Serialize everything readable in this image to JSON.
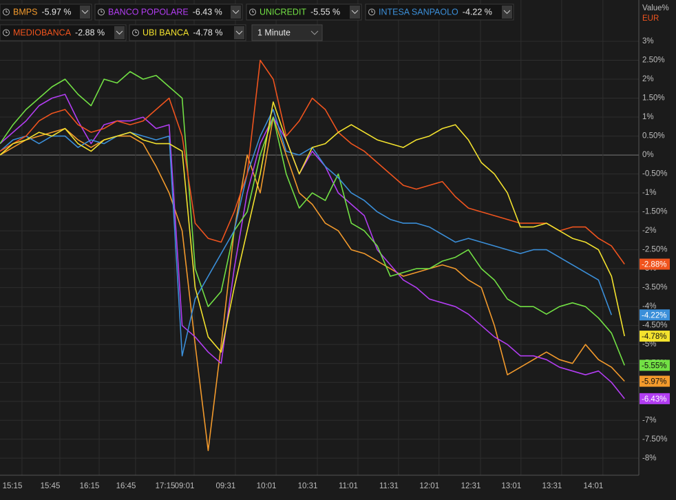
{
  "chart_data": {
    "type": "line",
    "axis_title": "Value%",
    "currency": "EUR",
    "interval": "1 Minute",
    "xlim": [
      0,
      49.1
    ],
    "xticks": [
      {
        "value": 0.95,
        "label": "15:15"
      },
      {
        "value": 3.86,
        "label": "15:45"
      },
      {
        "value": 6.88,
        "label": "16:15"
      },
      {
        "value": 9.68,
        "label": "16:45"
      },
      {
        "value": 12.7,
        "label": "17:15"
      },
      {
        "value": 14.18,
        "label": "09:01"
      },
      {
        "value": 17.35,
        "label": "09:31"
      },
      {
        "value": 20.48,
        "label": "10:01"
      },
      {
        "value": 23.65,
        "label": "10:31"
      },
      {
        "value": 26.77,
        "label": "11:01"
      },
      {
        "value": 29.89,
        "label": "11:31"
      },
      {
        "value": 33.0,
        "label": "12:01"
      },
      {
        "value": 36.19,
        "label": "12:31"
      },
      {
        "value": 39.3,
        "label": "13:01"
      },
      {
        "value": 42.43,
        "label": "13:31"
      },
      {
        "value": 45.6,
        "label": "14:01"
      }
    ],
    "ylim": [
      -8.45,
      3.6
    ],
    "yticks": [
      {
        "value": 3,
        "label": "3%"
      },
      {
        "value": 2.5,
        "label": "2.50%"
      },
      {
        "value": 2,
        "label": "2%"
      },
      {
        "value": 1.5,
        "label": "1.50%"
      },
      {
        "value": 1,
        "label": "1%"
      },
      {
        "value": 0.5,
        "label": "0.50%"
      },
      {
        "value": 0,
        "label": "0%"
      },
      {
        "value": -0.5,
        "label": "-0.50%"
      },
      {
        "value": -1,
        "label": "-1%"
      },
      {
        "value": -1.5,
        "label": "-1.50%"
      },
      {
        "value": -2,
        "label": "-2%"
      },
      {
        "value": -2.5,
        "label": "-2.50%"
      },
      {
        "value": -3,
        "label": "-3%"
      },
      {
        "value": -3.5,
        "label": "-3.50%"
      },
      {
        "value": -4,
        "label": "-4%"
      },
      {
        "value": -4.5,
        "label": "-4.50%"
      },
      {
        "value": -5,
        "label": "-5%"
      },
      {
        "value": -5.5,
        "label": "-5.50%"
      },
      {
        "value": -6,
        "label": "-6%"
      },
      {
        "value": -6.5,
        "label": "-6.50%"
      },
      {
        "value": -7,
        "label": "-7%"
      },
      {
        "value": -7.5,
        "label": "-7.50%"
      },
      {
        "value": -8,
        "label": "-8%"
      }
    ],
    "grid": true,
    "series": [
      {
        "name": "BMPS",
        "color": "#f39a2c",
        "change_label": "-5.97 %",
        "last_label": "-5.97%",
        "values": [
          0.0,
          0.2,
          0.4,
          0.5,
          0.6,
          0.7,
          0.4,
          0.2,
          0.4,
          0.5,
          0.5,
          0.3,
          -0.3,
          -1.0,
          -2.0,
          -5.0,
          -7.8,
          -5.0,
          -2.0,
          0.0,
          -1.0,
          1.0,
          0.0,
          -1.0,
          -1.3,
          -1.8,
          -2.0,
          -2.5,
          -2.6,
          -2.8,
          -3.0,
          -3.2,
          -3.1,
          -3.0,
          -2.9,
          -3.0,
          -3.3,
          -3.5,
          -4.5,
          -5.8,
          -5.6,
          -5.4,
          -5.2,
          -5.4,
          -5.5,
          -5.0,
          -5.4,
          -5.6,
          -5.97
        ]
      },
      {
        "name": "BANCO POPOLARE",
        "color": "#b23df2",
        "change_label": "-6.43 %",
        "last_label": "-6.43%",
        "values": [
          0.3,
          0.6,
          0.9,
          1.3,
          1.5,
          1.6,
          0.9,
          0.3,
          0.8,
          0.9,
          0.9,
          1.0,
          0.7,
          0.8,
          -4.5,
          -4.8,
          -5.2,
          -5.5,
          -3.0,
          -1.0,
          0.3,
          1.0,
          0.4,
          -0.5,
          0.1,
          -0.3,
          -1.0,
          -1.3,
          -1.6,
          -2.5,
          -2.9,
          -3.3,
          -3.5,
          -3.8,
          -3.9,
          -4.0,
          -4.2,
          -4.5,
          -4.8,
          -5.0,
          -5.3,
          -5.3,
          -5.4,
          -5.6,
          -5.7,
          -5.8,
          -5.7,
          -6.0,
          -6.43
        ]
      },
      {
        "name": "UNICREDIT",
        "color": "#72e044",
        "change_label": "-5.55 %",
        "last_label": "-5.55%",
        "values": [
          0.3,
          0.8,
          1.2,
          1.5,
          1.8,
          2.0,
          1.6,
          1.3,
          2.0,
          1.9,
          2.2,
          2.0,
          2.1,
          1.8,
          1.5,
          -3.0,
          -4.0,
          -3.6,
          -2.0,
          -1.5,
          0.0,
          1.0,
          -0.5,
          -1.4,
          -1.0,
          -1.2,
          -0.5,
          -1.8,
          -2.0,
          -2.4,
          -3.2,
          -3.1,
          -3.0,
          -3.0,
          -2.8,
          -2.7,
          -2.5,
          -3.0,
          -3.3,
          -3.8,
          -4.0,
          -4.0,
          -4.2,
          -4.0,
          -3.9,
          -4.0,
          -4.3,
          -4.7,
          -5.55
        ]
      },
      {
        "name": "INTESA SANPAOLO",
        "color": "#3b8fd9",
        "change_label": "-4.22 %",
        "last_label": "-4.22%",
        "values": [
          0.1,
          0.4,
          0.5,
          0.3,
          0.5,
          0.5,
          0.2,
          0.4,
          0.3,
          0.5,
          0.6,
          0.5,
          0.4,
          0.5,
          -5.3,
          -3.8,
          -3.2,
          -2.6,
          -2.0,
          -0.5,
          0.5,
          1.2,
          0.1,
          0.0,
          0.2,
          -0.3,
          -0.6,
          -1.0,
          -1.2,
          -1.5,
          -1.7,
          -1.8,
          -1.8,
          -1.9,
          -2.1,
          -2.3,
          -2.2,
          -2.3,
          -2.4,
          -2.5,
          -2.6,
          -2.5,
          -2.5,
          -2.7,
          -2.9,
          -3.1,
          -3.3,
          -4.22,
          null
        ]
      },
      {
        "name": "MEDIOBANCA",
        "color": "#f0541e",
        "change_label": "-2.88 %",
        "last_label": "-2.88%",
        "values": [
          0.1,
          0.3,
          0.5,
          0.9,
          1.1,
          1.2,
          0.8,
          0.6,
          0.7,
          0.9,
          0.8,
          0.9,
          1.2,
          1.5,
          0.5,
          -1.8,
          -2.2,
          -2.3,
          -1.5,
          -0.5,
          2.5,
          2.0,
          0.5,
          0.9,
          1.5,
          1.2,
          0.6,
          0.3,
          0.1,
          -0.2,
          -0.5,
          -0.8,
          -0.9,
          -0.8,
          -0.7,
          -1.1,
          -1.4,
          -1.5,
          -1.6,
          -1.7,
          -1.8,
          -1.8,
          -1.8,
          -2.0,
          -1.9,
          -1.9,
          -2.2,
          -2.4,
          -2.88
        ]
      },
      {
        "name": "UBI BANCA",
        "color": "#f3e22e",
        "change_label": "-4.78 %",
        "last_label": "-4.78%",
        "values": [
          0.0,
          0.3,
          0.4,
          0.6,
          0.5,
          0.7,
          0.3,
          0.1,
          0.4,
          0.5,
          0.6,
          0.4,
          0.3,
          0.3,
          0.1,
          -3.5,
          -4.8,
          -5.2,
          -3.5,
          -2.0,
          -0.5,
          1.4,
          0.4,
          -0.5,
          0.2,
          0.3,
          0.6,
          0.8,
          0.6,
          0.4,
          0.3,
          0.2,
          0.4,
          0.5,
          0.7,
          0.8,
          0.4,
          -0.2,
          -0.5,
          -1.0,
          -1.9,
          -1.9,
          -1.8,
          -2.0,
          -2.2,
          -2.3,
          -2.5,
          -3.2,
          -4.78
        ]
      }
    ]
  }
}
